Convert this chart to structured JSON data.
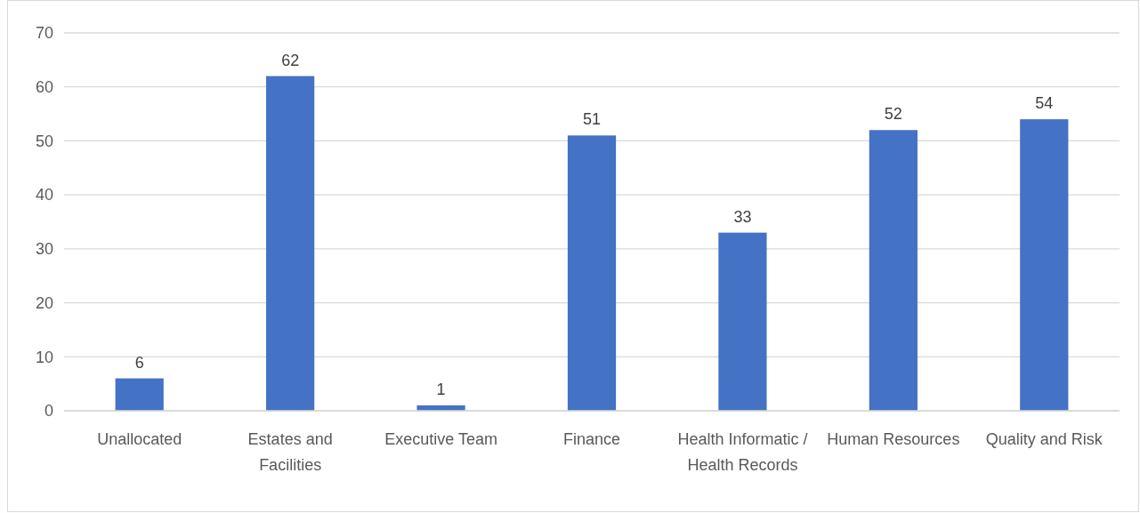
{
  "chart_data": {
    "type": "bar",
    "categories": [
      "Unallocated",
      "Estates and Facilities",
      "Executive Team",
      "Finance",
      "Health Informatic / Health Records",
      "Human Resources",
      "Quality and Risk"
    ],
    "values": [
      6,
      62,
      1,
      51,
      33,
      52,
      54
    ],
    "color": "#4472c4",
    "ylim": [
      0,
      70
    ],
    "yticks": [
      0,
      10,
      20,
      30,
      40,
      50,
      60,
      70
    ],
    "grid": "y",
    "data_labels": true
  }
}
